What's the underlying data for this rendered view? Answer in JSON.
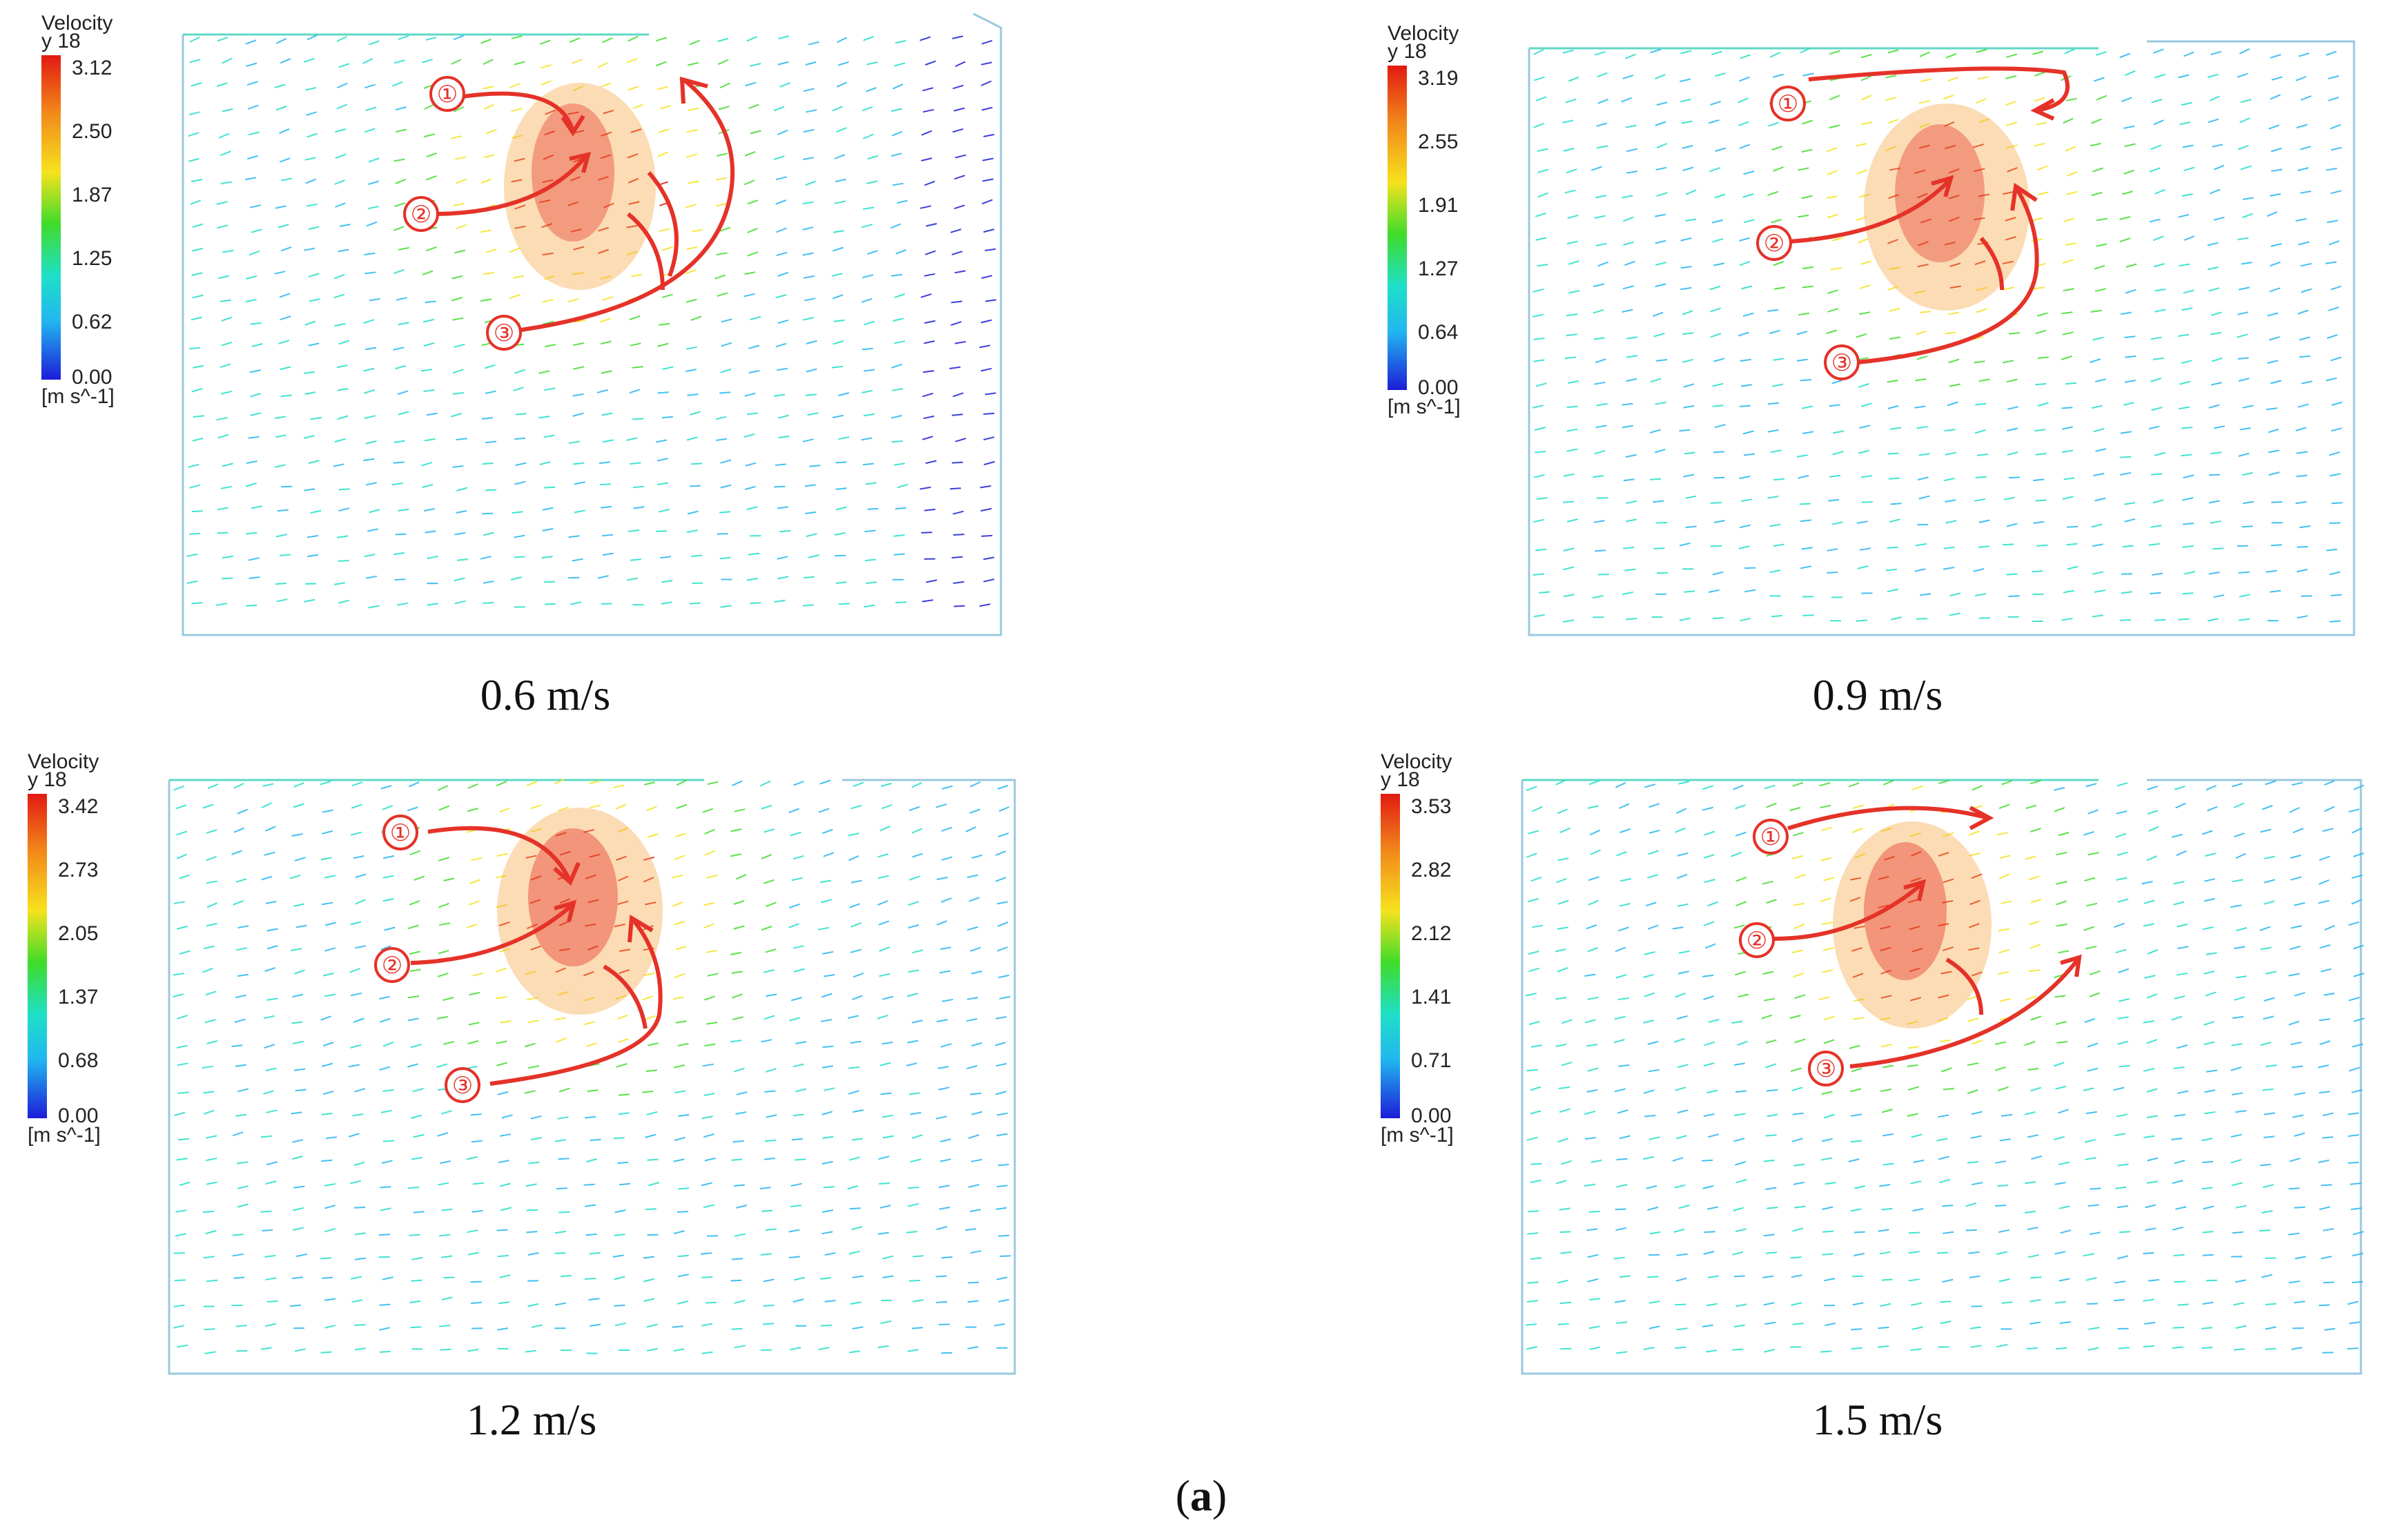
{
  "figure": {
    "label_open": "(",
    "label_letter": "a",
    "label_close": ")",
    "colormap": {
      "high": "#e21a12",
      "mid_high": "#f6e21e",
      "mid": "#3fdc2a",
      "mid_low": "#1ee0c8",
      "low": "#22b6f0",
      "min": "#1c1cd8",
      "annotation_arrow": "#e53228"
    }
  },
  "panels": [
    {
      "caption": "0.6 m/s",
      "legend": {
        "title": "Velocity",
        "subtitle": "y 18",
        "ticks": [
          "3.12",
          "2.50",
          "1.87",
          "1.25",
          "0.62",
          "0.00"
        ],
        "unit": "[m s^-1]"
      },
      "markers": [
        "①",
        "②",
        "③"
      ]
    },
    {
      "caption": "0.9 m/s",
      "legend": {
        "title": "Velocity",
        "subtitle": "y 18",
        "ticks": [
          "3.19",
          "2.55",
          "1.91",
          "1.27",
          "0.64",
          "0.00"
        ],
        "unit": "[m s^-1]"
      },
      "markers": [
        "①",
        "②",
        "③"
      ]
    },
    {
      "caption": "1.2 m/s",
      "legend": {
        "title": "Velocity",
        "subtitle": "y 18",
        "ticks": [
          "3.42",
          "2.73",
          "2.05",
          "1.37",
          "0.68",
          "0.00"
        ],
        "unit": "[m s^-1]"
      },
      "markers": [
        "①",
        "②",
        "③"
      ]
    },
    {
      "caption": "1.5 m/s",
      "legend": {
        "title": "Velocity",
        "subtitle": "y 18",
        "ticks": [
          "3.53",
          "2.82",
          "2.12",
          "1.41",
          "0.71",
          "0.00"
        ],
        "unit": "[m s^-1]"
      },
      "markers": [
        "①",
        "②",
        "③"
      ]
    }
  ]
}
